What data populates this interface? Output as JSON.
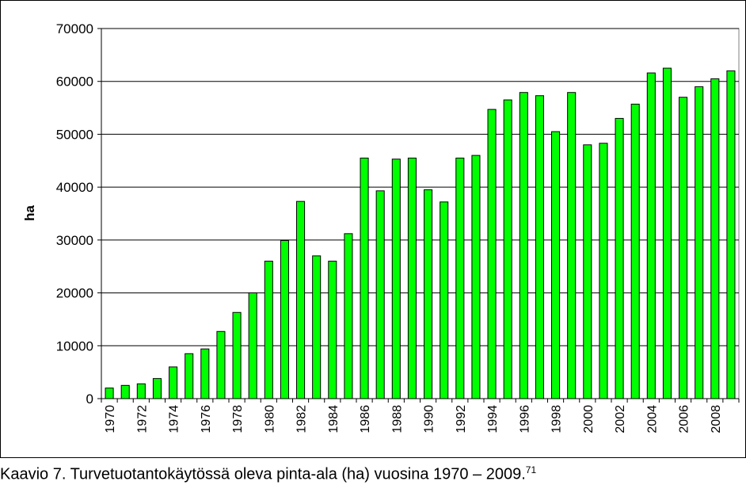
{
  "chart_data": {
    "type": "bar",
    "ylabel": "ha",
    "xlabel": "",
    "ylim": [
      0,
      70000
    ],
    "yticks": [
      "0",
      "10000",
      "20000",
      "30000",
      "40000",
      "50000",
      "60000",
      "70000"
    ],
    "grid": "horizontal",
    "legend": "none",
    "bar_color": "#00ff00",
    "categories": [
      "1970",
      "1971",
      "1972",
      "1973",
      "1974",
      "1975",
      "1976",
      "1977",
      "1978",
      "1979",
      "1980",
      "1981",
      "1982",
      "1983",
      "1984",
      "1985",
      "1986",
      "1987",
      "1988",
      "1989",
      "1990",
      "1991",
      "1992",
      "1993",
      "1994",
      "1995",
      "1996",
      "1997",
      "1998",
      "1999",
      "2000",
      "2001",
      "2002",
      "2003",
      "2004",
      "2005",
      "2006",
      "2007",
      "2008",
      "2009"
    ],
    "x_tick_labels": [
      "1970",
      "1972",
      "1974",
      "1976",
      "1978",
      "1980",
      "1982",
      "1984",
      "1986",
      "1988",
      "1990",
      "1992",
      "1994",
      "1996",
      "1998",
      "2000",
      "2002",
      "2004",
      "2006",
      "2008"
    ],
    "values": [
      2000,
      2500,
      2800,
      3800,
      6000,
      8500,
      9400,
      12700,
      16300,
      20000,
      26000,
      29900,
      37300,
      27000,
      26000,
      31200,
      45500,
      39300,
      45300,
      45500,
      39500,
      37200,
      45500,
      46000,
      54700,
      56500,
      57900,
      57300,
      50500,
      57900,
      48000,
      48300,
      53000,
      55700,
      61600,
      62500,
      57000,
      59000,
      60500,
      62000
    ]
  },
  "caption": {
    "text": "Kaavio 7. Turvetuotantokäytössä oleva pinta-ala (ha) vuosina 1970 – 2009.",
    "footnote": "71"
  }
}
